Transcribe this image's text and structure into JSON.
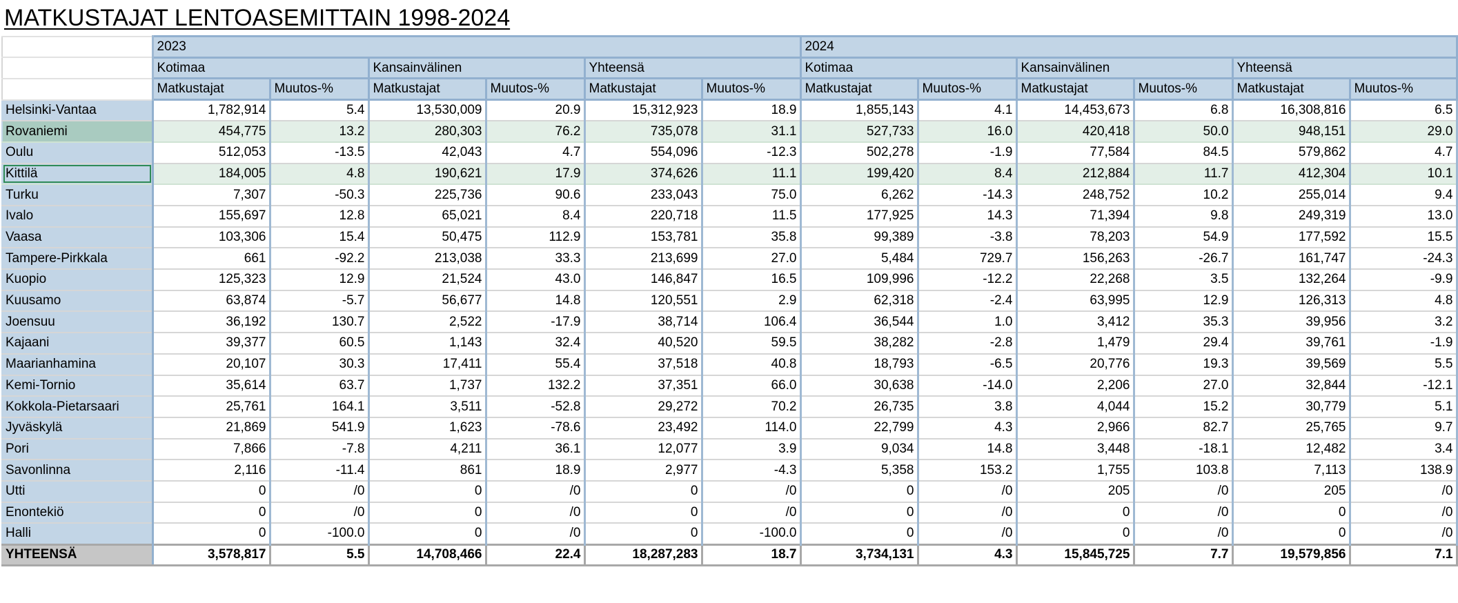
{
  "title": "MATKUSTAJAT LENTOASEMITTAIN 1998-2024",
  "years": [
    "2023",
    "2024"
  ],
  "groups": [
    "Kotimaa",
    "Kansainvälinen",
    "Yhteensä",
    "Kotimaa",
    "Kansainvälinen",
    "Yhteensä"
  ],
  "subheaders": [
    "Matkustajat",
    "Muutos-%",
    "Matkustajat",
    "Muutos-%",
    "Matkustajat",
    "Muutos-%",
    "Matkustajat",
    "Muutos-%",
    "Matkustajat",
    "Muutos-%",
    "Matkustajat",
    "Muutos-%"
  ],
  "rows": [
    {
      "name": "Helsinki-Vantaa",
      "values": [
        "1,782,914",
        "5.4",
        "13,530,009",
        "20.9",
        "15,312,923",
        "18.9",
        "1,855,143",
        "4.1",
        "14,453,673",
        "6.8",
        "16,308,816",
        "6.5"
      ]
    },
    {
      "name": "Rovaniemi",
      "values": [
        "454,775",
        "13.2",
        "280,303",
        "76.2",
        "735,078",
        "31.1",
        "527,733",
        "16.0",
        "420,418",
        "50.0",
        "948,151",
        "29.0"
      ]
    },
    {
      "name": "Oulu",
      "values": [
        "512,053",
        "-13.5",
        "42,043",
        "4.7",
        "554,096",
        "-12.3",
        "502,278",
        "-1.9",
        "77,584",
        "84.5",
        "579,862",
        "4.7"
      ]
    },
    {
      "name": "Kittilä",
      "values": [
        "184,005",
        "4.8",
        "190,621",
        "17.9",
        "374,626",
        "11.1",
        "199,420",
        "8.4",
        "212,884",
        "11.7",
        "412,304",
        "10.1"
      ]
    },
    {
      "name": "Turku",
      "values": [
        "7,307",
        "-50.3",
        "225,736",
        "90.6",
        "233,043",
        "75.0",
        "6,262",
        "-14.3",
        "248,752",
        "10.2",
        "255,014",
        "9.4"
      ]
    },
    {
      "name": "Ivalo",
      "values": [
        "155,697",
        "12.8",
        "65,021",
        "8.4",
        "220,718",
        "11.5",
        "177,925",
        "14.3",
        "71,394",
        "9.8",
        "249,319",
        "13.0"
      ]
    },
    {
      "name": "Vaasa",
      "values": [
        "103,306",
        "15.4",
        "50,475",
        "112.9",
        "153,781",
        "35.8",
        "99,389",
        "-3.8",
        "78,203",
        "54.9",
        "177,592",
        "15.5"
      ]
    },
    {
      "name": "Tampere-Pirkkala",
      "values": [
        "661",
        "-92.2",
        "213,038",
        "33.3",
        "213,699",
        "27.0",
        "5,484",
        "729.7",
        "156,263",
        "-26.7",
        "161,747",
        "-24.3"
      ]
    },
    {
      "name": "Kuopio",
      "values": [
        "125,323",
        "12.9",
        "21,524",
        "43.0",
        "146,847",
        "16.5",
        "109,996",
        "-12.2",
        "22,268",
        "3.5",
        "132,264",
        "-9.9"
      ]
    },
    {
      "name": "Kuusamo",
      "values": [
        "63,874",
        "-5.7",
        "56,677",
        "14.8",
        "120,551",
        "2.9",
        "62,318",
        "-2.4",
        "63,995",
        "12.9",
        "126,313",
        "4.8"
      ]
    },
    {
      "name": "Joensuu",
      "values": [
        "36,192",
        "130.7",
        "2,522",
        "-17.9",
        "38,714",
        "106.4",
        "36,544",
        "1.0",
        "3,412",
        "35.3",
        "39,956",
        "3.2"
      ]
    },
    {
      "name": "Kajaani",
      "values": [
        "39,377",
        "60.5",
        "1,143",
        "32.4",
        "40,520",
        "59.5",
        "38,282",
        "-2.8",
        "1,479",
        "29.4",
        "39,761",
        "-1.9"
      ]
    },
    {
      "name": "Maarianhamina",
      "values": [
        "20,107",
        "30.3",
        "17,411",
        "55.4",
        "37,518",
        "40.8",
        "18,793",
        "-6.5",
        "20,776",
        "19.3",
        "39,569",
        "5.5"
      ]
    },
    {
      "name": "Kemi-Tornio",
      "values": [
        "35,614",
        "63.7",
        "1,737",
        "132.2",
        "37,351",
        "66.0",
        "30,638",
        "-14.0",
        "2,206",
        "27.0",
        "32,844",
        "-12.1"
      ]
    },
    {
      "name": "Kokkola-Pietarsaari",
      "values": [
        "25,761",
        "164.1",
        "3,511",
        "-52.8",
        "29,272",
        "70.2",
        "26,735",
        "3.8",
        "4,044",
        "15.2",
        "30,779",
        "5.1"
      ]
    },
    {
      "name": "Jyväskylä",
      "values": [
        "21,869",
        "541.9",
        "1,623",
        "-78.6",
        "23,492",
        "114.0",
        "22,799",
        "4.3",
        "2,966",
        "82.7",
        "25,765",
        "9.7"
      ]
    },
    {
      "name": "Pori",
      "values": [
        "7,866",
        "-7.8",
        "4,211",
        "36.1",
        "12,077",
        "3.9",
        "9,034",
        "14.8",
        "3,448",
        "-18.1",
        "12,482",
        "3.4"
      ]
    },
    {
      "name": "Savonlinna",
      "values": [
        "2,116",
        "-11.4",
        "861",
        "18.9",
        "2,977",
        "-4.3",
        "5,358",
        "153.2",
        "1,755",
        "103.8",
        "7,113",
        "138.9"
      ]
    },
    {
      "name": "Utti",
      "values": [
        "0",
        "/0",
        "0",
        "/0",
        "0",
        "/0",
        "0",
        "/0",
        "205",
        "/0",
        "205",
        "/0"
      ]
    },
    {
      "name": "Enontekiö",
      "values": [
        "0",
        "/0",
        "0",
        "/0",
        "0",
        "/0",
        "0",
        "/0",
        "0",
        "/0",
        "0",
        "/0"
      ]
    },
    {
      "name": "Halli",
      "values": [
        "0",
        "-100.0",
        "0",
        "/0",
        "0",
        "-100.0",
        "0",
        "/0",
        "0",
        "/0",
        "0",
        "/0"
      ]
    }
  ],
  "total": {
    "name": "YHTEENSÄ",
    "values": [
      "3,578,817",
      "5.5",
      "14,708,466",
      "22.4",
      "18,287,283",
      "18.7",
      "3,734,131",
      "4.3",
      "15,845,725",
      "7.7",
      "19,579,856",
      "7.1"
    ]
  }
}
